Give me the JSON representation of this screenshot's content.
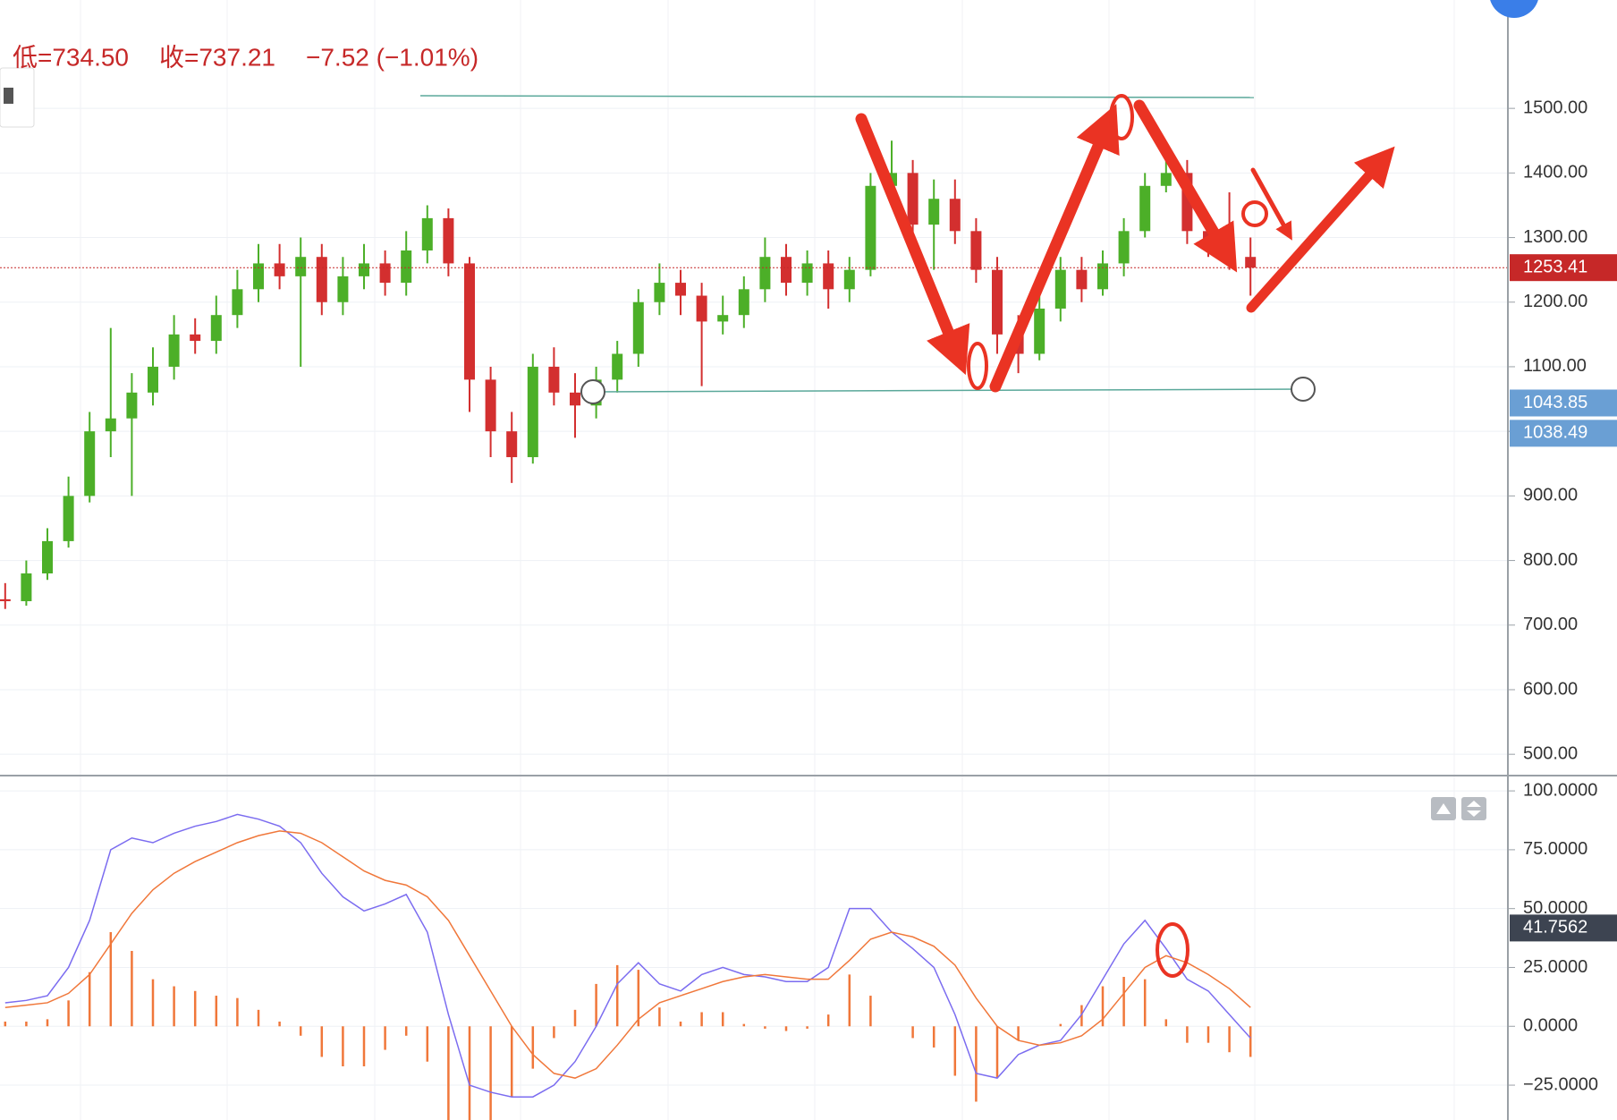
{
  "header": {
    "low": "低=734.50",
    "close": "收=737.21",
    "change": "−7.52 (−1.01%)"
  },
  "chart_data": [
    {
      "type": "candlestick",
      "up_color": "#4caf28",
      "down_color": "#d32f2f",
      "ylim": [
        467,
        1629
      ],
      "yticks": [
        {
          "value": 500,
          "label": "500.00"
        },
        {
          "value": 600,
          "label": "600.00"
        },
        {
          "value": 700,
          "label": "700.00"
        },
        {
          "value": 800,
          "label": "800.00"
        },
        {
          "value": 900,
          "label": "900.00"
        },
        {
          "value": 1000,
          "label": "1000.00"
        },
        {
          "value": 1100,
          "label": "1100.00"
        },
        {
          "value": 1200,
          "label": "1200.00"
        },
        {
          "value": 1300,
          "label": "1300.00"
        },
        {
          "value": 1400,
          "label": "1400.00"
        },
        {
          "value": 1500,
          "label": "1500.00"
        }
      ],
      "grid": true,
      "open": [
        740,
        737,
        780,
        830,
        900,
        1000,
        1020,
        1060,
        1100,
        1150,
        1140,
        1180,
        1220,
        1260,
        1240,
        1270,
        1200,
        1240,
        1260,
        1230,
        1280,
        1330,
        1260,
        1080,
        1000,
        960,
        1100,
        1060,
        1040,
        1080,
        1120,
        1200,
        1230,
        1210,
        1170,
        1180,
        1220,
        1270,
        1230,
        1260,
        1220,
        1250,
        1380,
        1400,
        1320,
        1360,
        1310,
        1250,
        1150,
        1120,
        1190,
        1250,
        1220,
        1260,
        1310,
        1380,
        1400,
        1310,
        1290,
        1270
      ],
      "high": [
        765,
        800,
        850,
        930,
        1030,
        1160,
        1090,
        1130,
        1180,
        1175,
        1210,
        1250,
        1290,
        1290,
        1300,
        1290,
        1270,
        1290,
        1280,
        1310,
        1350,
        1345,
        1270,
        1100,
        1030,
        1120,
        1130,
        1090,
        1100,
        1140,
        1220,
        1260,
        1250,
        1230,
        1210,
        1240,
        1300,
        1290,
        1280,
        1280,
        1270,
        1400,
        1450,
        1420,
        1390,
        1390,
        1330,
        1270,
        1180,
        1210,
        1270,
        1270,
        1280,
        1330,
        1400,
        1440,
        1420,
        1330,
        1370,
        1300
      ],
      "low": [
        725,
        730,
        770,
        820,
        890,
        960,
        900,
        1040,
        1080,
        1120,
        1120,
        1160,
        1200,
        1220,
        1100,
        1180,
        1180,
        1220,
        1210,
        1210,
        1260,
        1240,
        1030,
        960,
        920,
        950,
        1040,
        990,
        1020,
        1060,
        1100,
        1180,
        1180,
        1070,
        1150,
        1160,
        1200,
        1210,
        1210,
        1190,
        1200,
        1240,
        1360,
        1300,
        1250,
        1290,
        1230,
        1120,
        1090,
        1110,
        1170,
        1200,
        1210,
        1240,
        1300,
        1370,
        1290,
        1270,
        1250,
        1210
      ],
      "close": [
        737,
        780,
        830,
        900,
        1000,
        1020,
        1060,
        1100,
        1150,
        1140,
        1180,
        1220,
        1260,
        1240,
        1270,
        1200,
        1240,
        1260,
        1230,
        1280,
        1330,
        1260,
        1080,
        1000,
        960,
        1100,
        1060,
        1040,
        1080,
        1120,
        1200,
        1230,
        1210,
        1170,
        1180,
        1220,
        1270,
        1230,
        1260,
        1220,
        1250,
        1380,
        1400,
        1320,
        1360,
        1310,
        1250,
        1150,
        1120,
        1190,
        1250,
        1220,
        1260,
        1310,
        1380,
        1400,
        1310,
        1290,
        1270,
        1253.41
      ],
      "price_markers": [
        {
          "value": 1253.41,
          "color": "#c62828"
        },
        {
          "value": 1043.85,
          "color": "#6a9fd4"
        },
        {
          "value": 1038.49,
          "color": "#6a9fd4"
        }
      ]
    },
    {
      "type": "macd",
      "ylim": [
        -39.8,
        106.5
      ],
      "yticks": [
        {
          "value": -25,
          "label": "−25.0000"
        },
        {
          "value": 0,
          "label": "0.0000"
        },
        {
          "value": 25,
          "label": "25.0000"
        },
        {
          "value": 50,
          "label": "50.0000"
        },
        {
          "value": 75,
          "label": "75.0000"
        },
        {
          "value": 100,
          "label": "100.0000"
        }
      ],
      "grid": true,
      "histogram": {
        "color": "#f0773a",
        "values": [
          2,
          2,
          3,
          11,
          23,
          40,
          32,
          20,
          17,
          15,
          13,
          12,
          7,
          2,
          -4,
          -13,
          -17,
          -17,
          -10,
          -4,
          -15,
          -40,
          -55,
          -43,
          -30,
          -18,
          -5,
          7,
          18,
          26,
          24,
          8,
          2,
          6,
          6,
          1,
          -1,
          -2,
          -1,
          5,
          22,
          13,
          0,
          -5,
          -9,
          -21,
          -32,
          -22,
          -6,
          0,
          1,
          9,
          17,
          21,
          20,
          3,
          -7,
          -7,
          -11,
          -13
        ]
      },
      "series": [
        {
          "color": "#7b6cf0",
          "values": [
            10,
            11,
            13,
            25,
            45,
            75,
            80,
            78,
            82,
            85,
            87,
            90,
            88,
            85,
            78,
            65,
            55,
            49,
            52,
            56,
            40,
            5,
            -25,
            -28,
            -30,
            -30,
            -25,
            -15,
            0,
            18,
            27,
            18,
            15,
            22,
            25,
            22,
            21,
            19,
            19,
            25,
            50,
            50,
            40,
            33,
            25,
            5,
            -20,
            -22,
            -12,
            -8,
            -6,
            5,
            20,
            35,
            45,
            33,
            20,
            15,
            5,
            -5
          ]
        },
        {
          "color": "#f0773a",
          "values": [
            8,
            9,
            10,
            14,
            22,
            35,
            48,
            58,
            65,
            70,
            74,
            78,
            81,
            83,
            82,
            78,
            72,
            66,
            62,
            60,
            55,
            45,
            30,
            15,
            0,
            -12,
            -20,
            -22,
            -18,
            -8,
            3,
            10,
            13,
            16,
            19,
            21,
            22,
            21,
            20,
            20,
            28,
            37,
            40,
            38,
            34,
            26,
            12,
            0,
            -6,
            -8,
            -7,
            -4,
            3,
            14,
            25,
            30,
            27,
            22,
            16,
            8
          ]
        }
      ],
      "price_markers": [
        {
          "value": 41.7562,
          "color": "#3d4451"
        }
      ]
    }
  ]
}
